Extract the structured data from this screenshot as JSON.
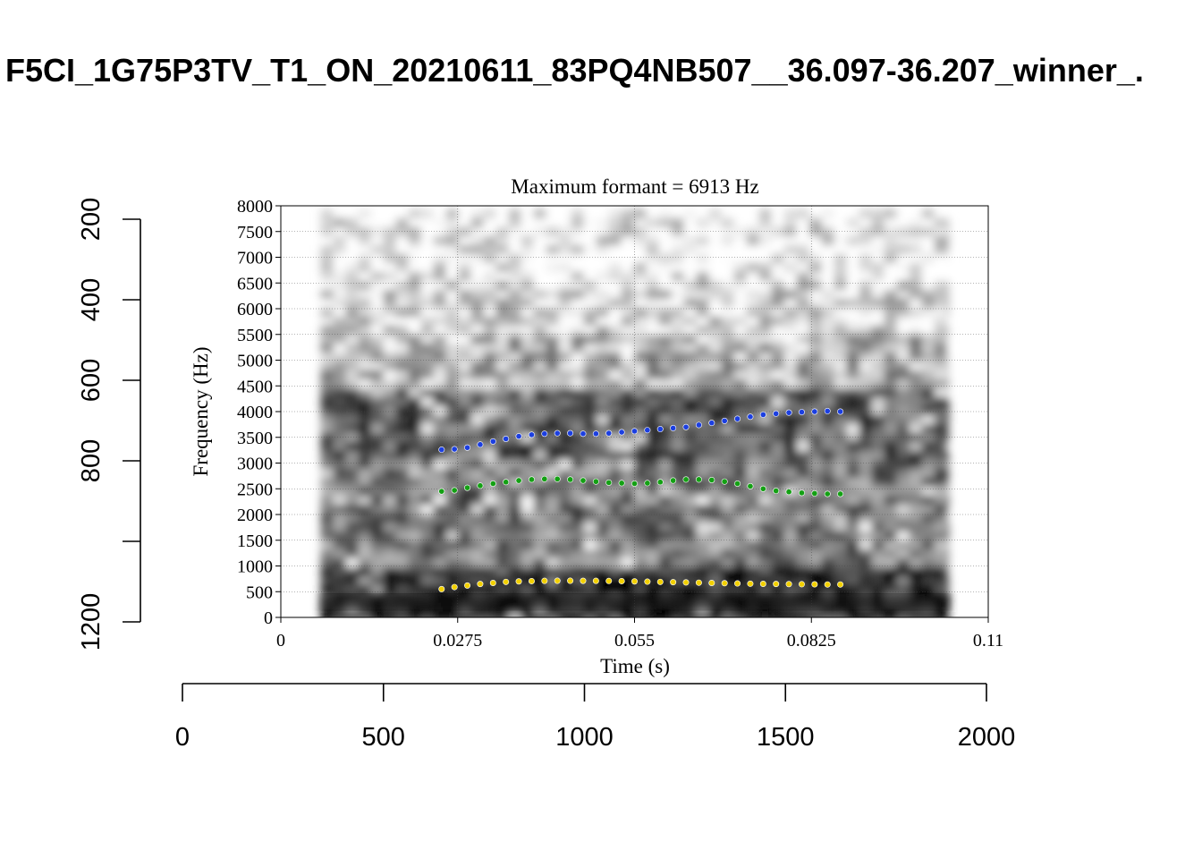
{
  "title": "F5CI_1G75P3TV_T1_ON_20210611_83PQ4NB507__36.097-36.207_winner_.",
  "outer_axes": {
    "x": {
      "ticks": [
        "0",
        "500",
        "1000",
        "1500",
        "2000"
      ],
      "range": [
        0,
        2000
      ]
    },
    "y": {
      "ticks": [
        "200",
        "400",
        "600",
        "800",
        "1200"
      ],
      "range": [
        200,
        1200
      ],
      "reversed": true
    }
  },
  "chart_data": {
    "type": "scatter",
    "title": "Maximum formant  =  6913 Hz",
    "xlabel": "Time (s)",
    "ylabel": "Frequency (Hz)",
    "xlim": [
      0,
      0.11
    ],
    "ylim": [
      0,
      8000
    ],
    "x_ticks": [
      "0",
      "0.0275",
      "0.055",
      "0.0825",
      "0.11"
    ],
    "y_ticks": [
      "0",
      "500",
      "1000",
      "1500",
      "2000",
      "2500",
      "3000",
      "3500",
      "4000",
      "4500",
      "5000",
      "5500",
      "6000",
      "6500",
      "7000",
      "7500",
      "8000"
    ],
    "grid": true,
    "background": "grayscale spectrogram",
    "spectrogram_time_range": [
      0.0062,
      0.1039
    ],
    "series": [
      {
        "color": "#f2d000",
        "x": [
          0.025,
          0.027,
          0.029,
          0.031,
          0.033,
          0.035,
          0.037,
          0.039,
          0.041,
          0.043,
          0.045,
          0.047,
          0.049,
          0.051,
          0.053,
          0.055,
          0.057,
          0.059,
          0.061,
          0.063,
          0.065,
          0.067,
          0.069,
          0.071,
          0.073,
          0.075,
          0.077,
          0.079,
          0.081,
          0.083,
          0.085,
          0.087
        ],
        "y": [
          550,
          590,
          620,
          650,
          670,
          690,
          700,
          705,
          710,
          712,
          712,
          711,
          710,
          708,
          705,
          700,
          695,
          690,
          685,
          680,
          675,
          670,
          665,
          660,
          655,
          652,
          650,
          648,
          645,
          643,
          640,
          640
        ]
      },
      {
        "color": "#14a014",
        "x": [
          0.025,
          0.027,
          0.029,
          0.031,
          0.033,
          0.035,
          0.037,
          0.039,
          0.041,
          0.043,
          0.045,
          0.047,
          0.049,
          0.051,
          0.053,
          0.055,
          0.057,
          0.059,
          0.061,
          0.063,
          0.065,
          0.067,
          0.069,
          0.071,
          0.073,
          0.075,
          0.077,
          0.079,
          0.081,
          0.083,
          0.085,
          0.087
        ],
        "y": [
          2450,
          2470,
          2520,
          2560,
          2600,
          2630,
          2660,
          2680,
          2690,
          2690,
          2680,
          2660,
          2640,
          2620,
          2610,
          2600,
          2610,
          2630,
          2660,
          2680,
          2680,
          2670,
          2640,
          2600,
          2550,
          2500,
          2460,
          2440,
          2420,
          2410,
          2400,
          2400
        ]
      },
      {
        "color": "#1c3fe0",
        "x": [
          0.025,
          0.027,
          0.029,
          0.031,
          0.033,
          0.035,
          0.037,
          0.039,
          0.041,
          0.043,
          0.045,
          0.047,
          0.049,
          0.051,
          0.053,
          0.055,
          0.057,
          0.059,
          0.061,
          0.063,
          0.065,
          0.067,
          0.069,
          0.071,
          0.073,
          0.075,
          0.077,
          0.079,
          0.081,
          0.083,
          0.085,
          0.087
        ],
        "y": [
          3260,
          3270,
          3300,
          3360,
          3420,
          3470,
          3520,
          3550,
          3570,
          3580,
          3580,
          3570,
          3570,
          3580,
          3600,
          3620,
          3640,
          3660,
          3680,
          3700,
          3740,
          3780,
          3820,
          3860,
          3900,
          3940,
          3960,
          3980,
          3990,
          4000,
          4010,
          4000
        ]
      }
    ]
  }
}
